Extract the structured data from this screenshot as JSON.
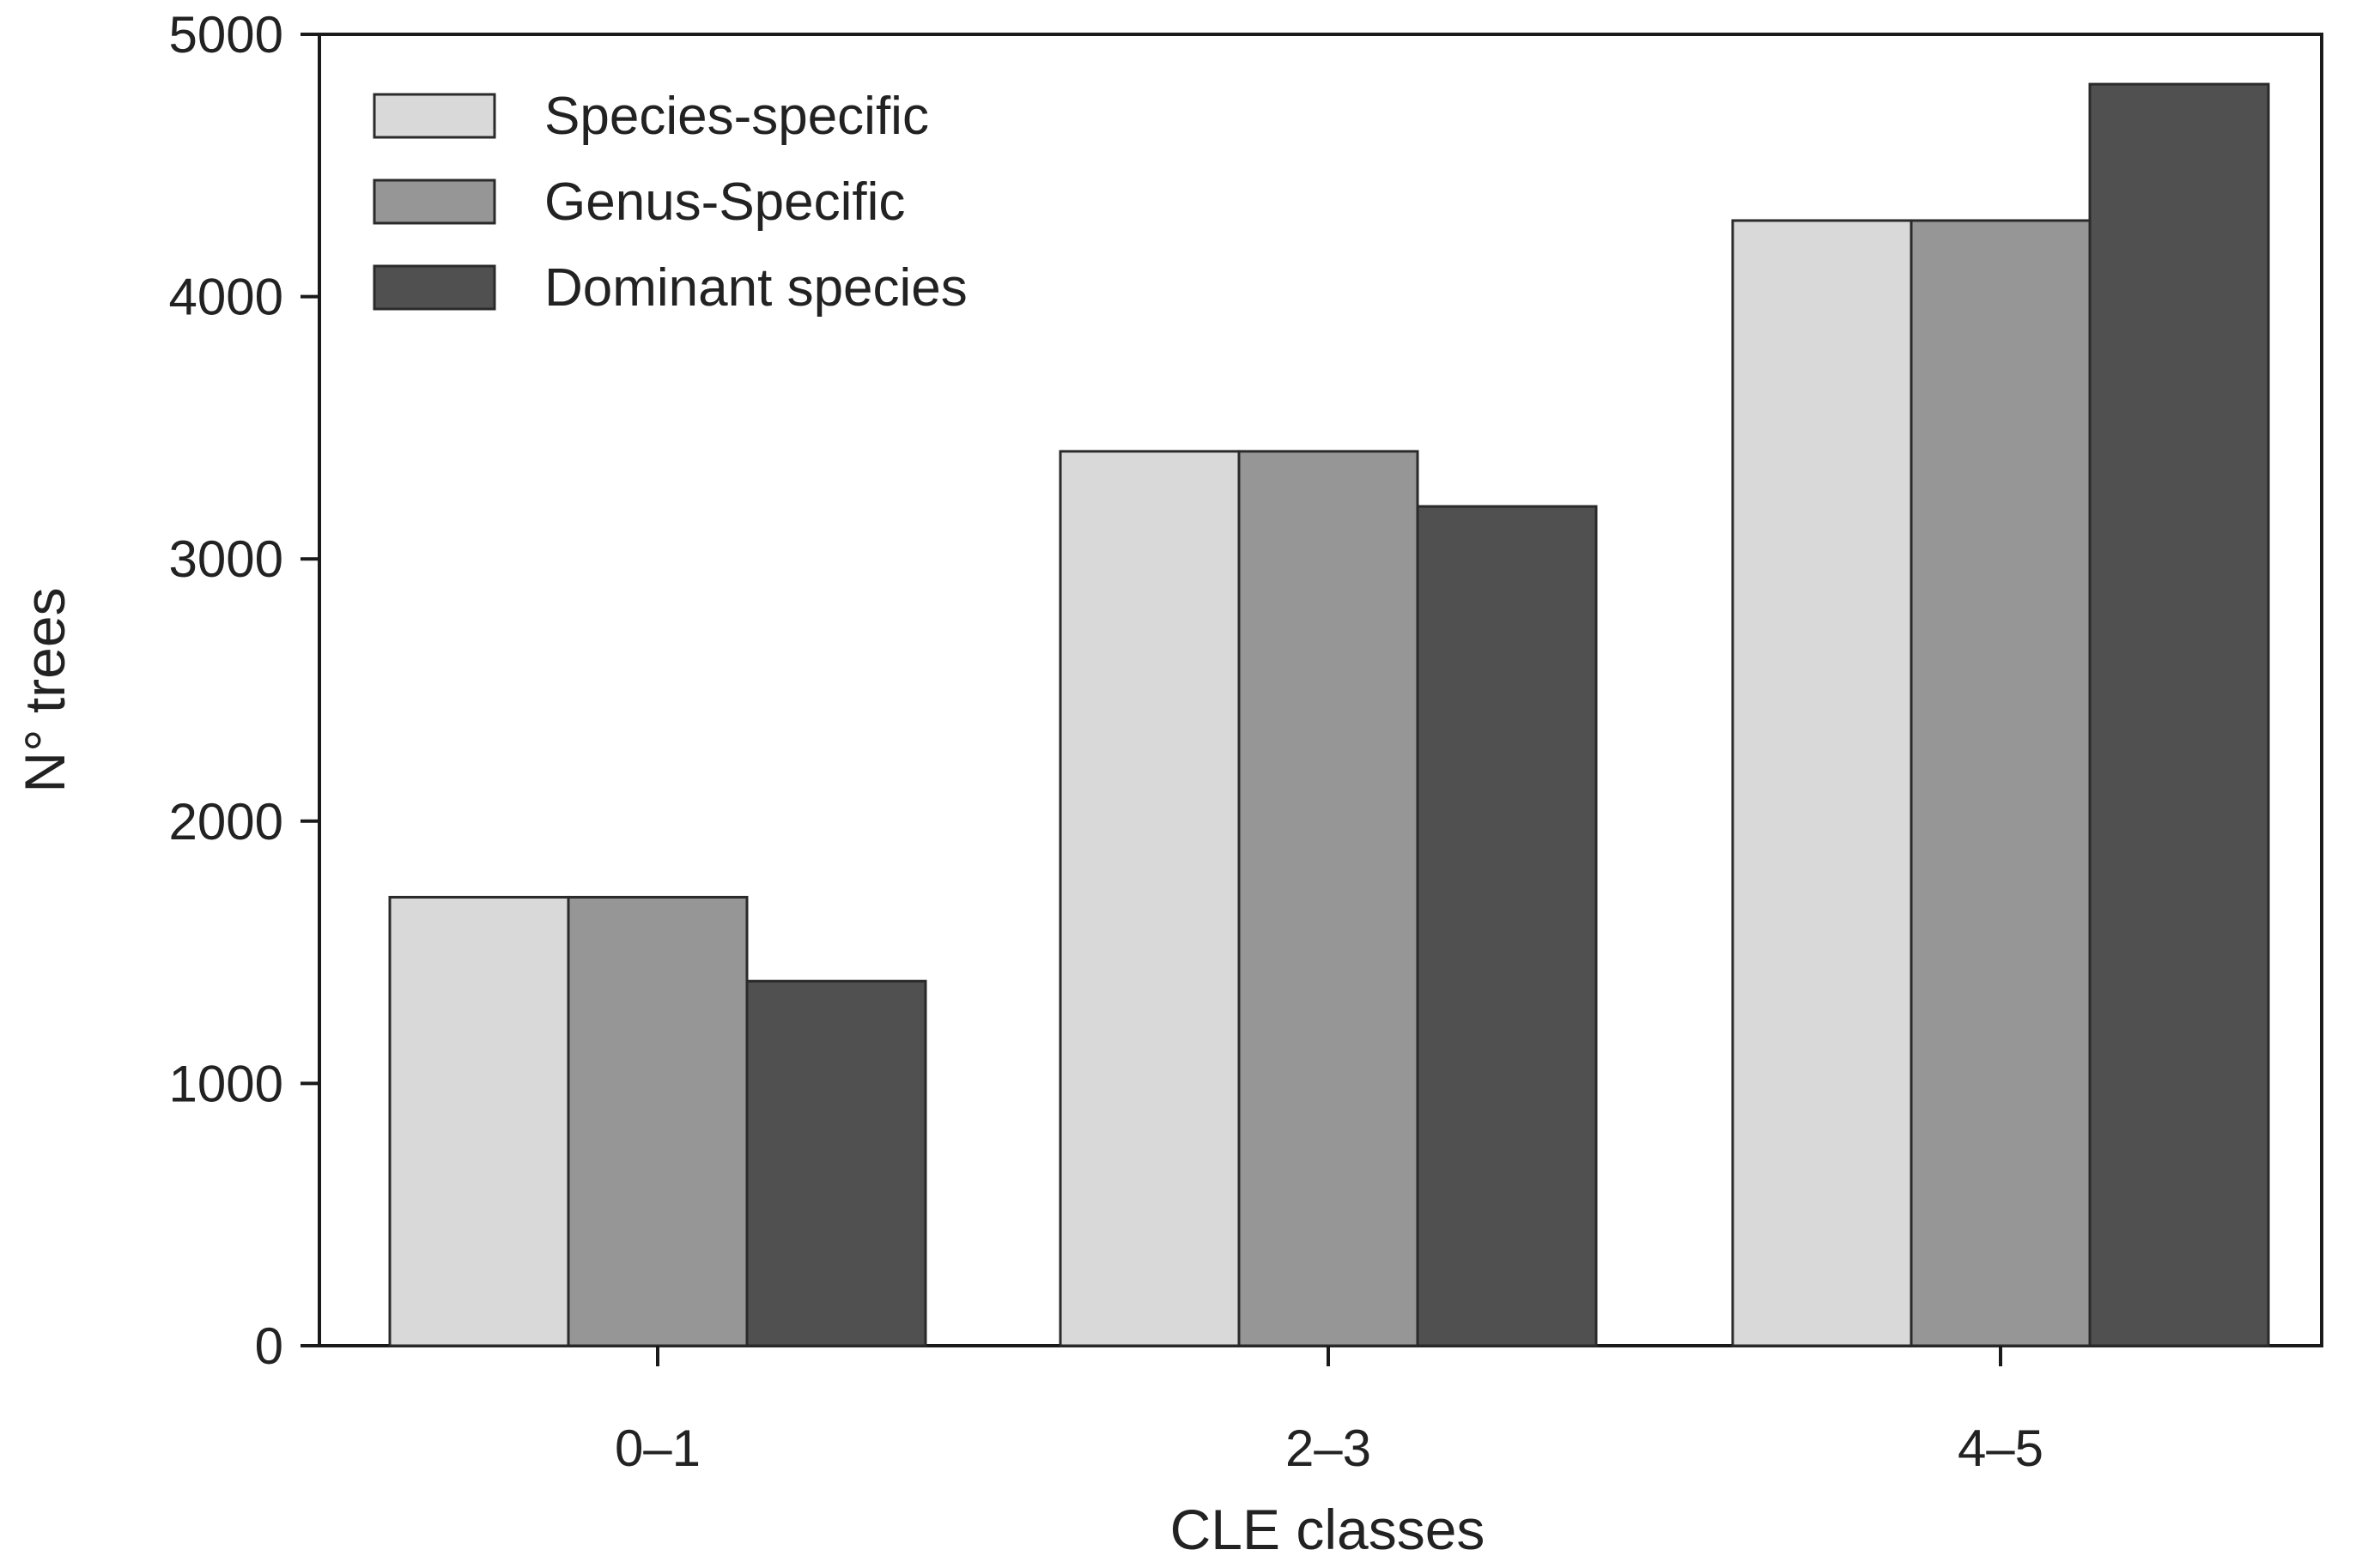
{
  "chart_data": {
    "type": "bar",
    "title": "",
    "xlabel": "CLE classes",
    "ylabel": "N° trees",
    "categories": [
      "0–1",
      "2–3",
      "4–5"
    ],
    "ylim": [
      0,
      5000
    ],
    "yticks": [
      0,
      1000,
      2000,
      3000,
      4000,
      5000
    ],
    "grid": false,
    "legend_position": "top-left",
    "series": [
      {
        "name": "Species-specific",
        "color": "#d9d9d9",
        "values": [
          1710,
          3410,
          4290
        ]
      },
      {
        "name": "Genus-Specific",
        "color": "#969696",
        "values": [
          1710,
          3410,
          4290
        ]
      },
      {
        "name": "Dominant species",
        "color": "#505050",
        "values": [
          1390,
          3200,
          4810
        ]
      }
    ]
  }
}
